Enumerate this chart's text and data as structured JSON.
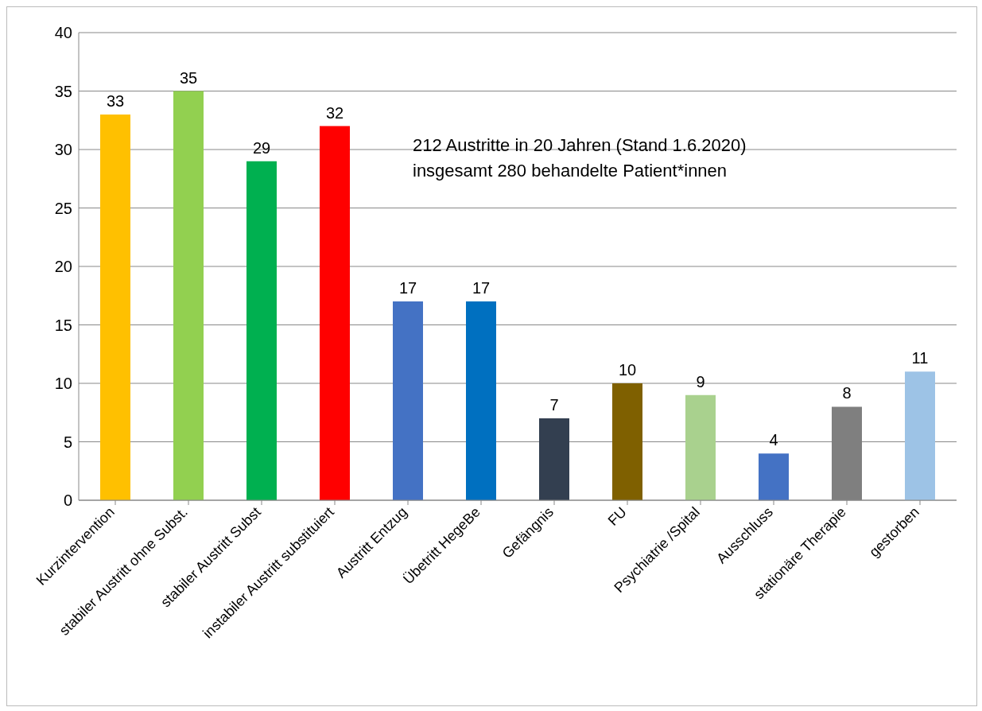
{
  "chart_data": {
    "type": "bar",
    "categories": [
      "Kurzintervention",
      "stabiler Austritt ohne Subst.",
      "stabiler Austritt Subst",
      "instabiler Austritt substituiert",
      "Austritt Entzug",
      "Übetritt HegeBe",
      "Gefängnis",
      "FU",
      "Psychiatrie /Spital",
      "Ausschluss",
      "stationäre Therapie",
      "gestorben"
    ],
    "values": [
      33,
      35,
      29,
      32,
      17,
      17,
      7,
      10,
      9,
      4,
      8,
      11
    ],
    "colors": [
      "#ffc000",
      "#92d050",
      "#00b050",
      "#ff0000",
      "#4472c4",
      "#0070c0",
      "#333f50",
      "#7f6000",
      "#a9d18e",
      "#4472c4",
      "#7f7f7f",
      "#9dc3e6"
    ],
    "ylim": [
      0,
      40
    ],
    "yticks": [
      0,
      5,
      10,
      15,
      20,
      25,
      30,
      35,
      40
    ],
    "grid": "y",
    "data_labels": true,
    "annotations": [
      "212 Austritte in 20 Jahren (Stand 1.6.2020)",
      "insgesamt 280 behandelte Patient*innen"
    ]
  }
}
